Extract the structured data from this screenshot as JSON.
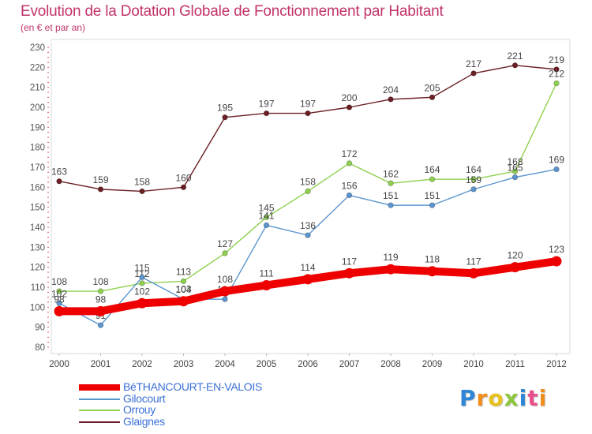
{
  "header": {
    "title": "Evolution de la Dotation Globale de Fonctionnement par Habitant",
    "subtitle": "(en € et par an)"
  },
  "colors": {
    "title": "#c2336b",
    "legend_text": "#3a6fd6"
  },
  "logo": {
    "text": "Proxiti"
  },
  "chart_data": {
    "type": "line",
    "title": "Evolution de la Dotation Globale de Fonctionnement par Habitant",
    "subtitle": "(en € et par an)",
    "xlabel": "",
    "ylabel": "",
    "categories": [
      "2000",
      "2001",
      "2002",
      "2003",
      "2004",
      "2005",
      "2006",
      "2007",
      "2008",
      "2009",
      "2010",
      "2011",
      "2012"
    ],
    "ylim": [
      80,
      230
    ],
    "yticks": [
      80,
      90,
      100,
      110,
      120,
      130,
      140,
      150,
      160,
      170,
      180,
      190,
      200,
      210,
      220,
      230
    ],
    "grid": false,
    "legend_position": "bottom-left",
    "series": [
      {
        "name": "Glaignes",
        "color": "#6b1f24",
        "values": [
          163,
          159,
          158,
          160,
          195,
          197,
          197,
          200,
          204,
          205,
          217,
          221,
          219
        ]
      },
      {
        "name": "Orrouy",
        "color": "#8fd14f",
        "values": [
          108,
          108,
          112,
          113,
          127,
          145,
          158,
          172,
          162,
          164,
          164,
          168,
          212
        ]
      },
      {
        "name": "Gilocourt",
        "color": "#5b95cf",
        "values": [
          102,
          91,
          115,
          104,
          104,
          141,
          136,
          156,
          151,
          151,
          159,
          165,
          169
        ]
      },
      {
        "name": "BéTHANCOURT-EN-VALOIS",
        "color": "#ee0000",
        "values": [
          98,
          98,
          102,
          103,
          108,
          111,
          114,
          117,
          119,
          118,
          117,
          120,
          123
        ]
      }
    ],
    "legend_order": [
      "BéTHANCOURT-EN-VALOIS",
      "Gilocourt",
      "Orrouy",
      "Glaignes"
    ]
  }
}
